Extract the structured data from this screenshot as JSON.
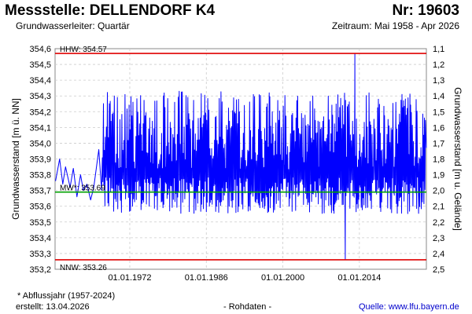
{
  "header": {
    "title": "Messstelle: DELLENDORF K4",
    "number": "Nr: 19603",
    "aquifer": "Grundwasserleiter: Quartär",
    "period": "Zeitraum: Mai 1958 - Apr 2026"
  },
  "footer": {
    "note": "* Abflussjahr (1957-2024)",
    "created": "erstellt:  13.04.2026",
    "raw": "- Rohdaten -",
    "source": "Quelle: www.lfu.bayern.de"
  },
  "colors": {
    "series": "#0000ff",
    "extreme_lines": "#e00000",
    "mean_line": "#00a000",
    "grid": "#cccccc"
  },
  "chart_data": {
    "type": "line",
    "ylabel": "Grundwasserstand [m ü. NN]",
    "y2label": "Grundwasserstand [m u. Gelände]",
    "ylim": [
      353.2,
      354.6
    ],
    "yticks": [
      "354,6",
      "354,5",
      "354,4",
      "354,3",
      "354,2",
      "354,1",
      "354,0",
      "353,9",
      "353,8",
      "353,7",
      "353,6",
      "353,5",
      "353,4",
      "353,3",
      "353,2"
    ],
    "y2ticks": [
      "1,1",
      "1,2",
      "1,3",
      "1,4",
      "1,5",
      "1,6",
      "1,7",
      "1,8",
      "1,9",
      "2,0",
      "2,1",
      "2,2",
      "2,3",
      "2,4",
      "2,5"
    ],
    "xlim": [
      "1958-05",
      "2026-04"
    ],
    "xticks": [
      "01.01.1972",
      "01.01.1986",
      "01.01.2000",
      "01.01.2014"
    ],
    "grid": true,
    "reference_lines": [
      {
        "label": "HHW: 354.57",
        "value": 354.57
      },
      {
        "label": "MW*: 353.69",
        "value": 353.69
      },
      {
        "label": "NNW: 353.26",
        "value": 353.26
      }
    ],
    "series": [
      {
        "points_early": [
          [
            "1958-06",
            353.76
          ],
          [
            "1959-03",
            353.9
          ],
          [
            "1959-10",
            353.74
          ],
          [
            "1960-04",
            353.85
          ],
          [
            "1961-02",
            353.72
          ],
          [
            "1961-09",
            353.84
          ],
          [
            "1962-05",
            353.66
          ],
          [
            "1963-01",
            353.8
          ],
          [
            "1963-07",
            353.7
          ],
          [
            "1964-03",
            353.74
          ],
          [
            "1964-11",
            353.64
          ],
          [
            "1965-06",
            353.72
          ],
          [
            "1966-05",
            353.96
          ],
          [
            "1966-11",
            353.7
          ]
        ],
        "range_1967_2025": [
          353.3,
          354.36
        ],
        "min": {
          "date": "2011-06",
          "value": 353.26
        },
        "max": {
          "date": "2013-03",
          "value": 354.57
        },
        "end": {
          "date": "2026-04",
          "value": 353.97
        }
      }
    ]
  }
}
